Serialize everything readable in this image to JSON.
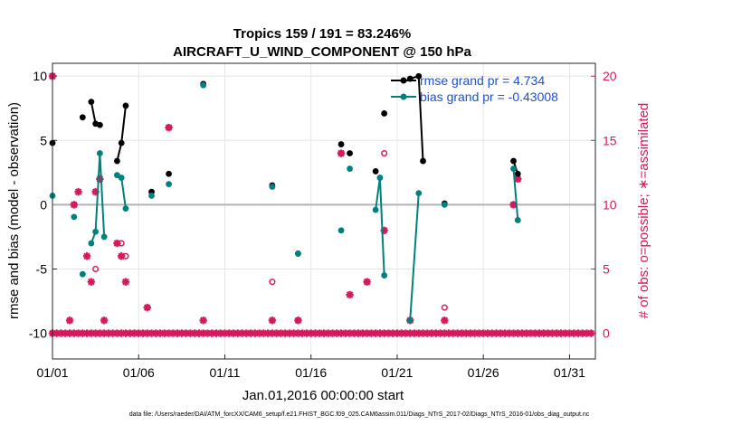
{
  "chart_data": {
    "type": "line",
    "title": "Tropics 159 / 191 = 83.246%",
    "subtitle": "AIRCRAFT_U_WIND_COMPONENT @ 150 hPa",
    "xlabel": "Jan.01,2016 00:00:00 start",
    "ylabel_left": "rmse and bias (model - observation)",
    "ylabel_right": "# of obs: o=possible; ∗=assimilated",
    "footer": "data file: /Users/raeder/DAI/ATM_forcXX/CAM6_setup/f.e21.FHIST_BGC.f09_025.CAM6assim.011/Diags_NTrS_2017-02/Diags_NTrS_2016-01/obs_diag_output.nc",
    "xlim": [
      0,
      31.5
    ],
    "ylim_left": [
      -12,
      11
    ],
    "ylim_right": [
      -2,
      21
    ],
    "x_ticks": [
      0,
      5,
      10,
      15,
      20,
      25,
      30
    ],
    "x_tick_labels": [
      "01/01",
      "01/06",
      "01/11",
      "01/16",
      "01/21",
      "01/26",
      "01/31"
    ],
    "y_left_ticks": [
      -10,
      -5,
      0,
      5,
      10
    ],
    "y_left_tick_labels": [
      "-10",
      "-5",
      "0",
      "5",
      "10"
    ],
    "y_right_ticks": [
      0,
      5,
      10,
      15,
      20
    ],
    "y_right_tick_labels": [
      "0",
      "5",
      "10",
      "15",
      "20"
    ],
    "grid": true,
    "legend_position": "top-right",
    "colors": {
      "rmse": "#000000",
      "bias": "#00807f",
      "obs": "#d6195c",
      "zero_line": "#b3b3b3",
      "legend_text": "#1a50e0"
    },
    "series": [
      {
        "name": "rmse grand pr = 4.734",
        "axis": "left",
        "points": [
          [
            0,
            4.8
          ],
          [
            1.75,
            6.8
          ],
          [
            2.25,
            8.0
          ],
          [
            2.5,
            6.3
          ],
          [
            2.75,
            6.2
          ],
          [
            3.75,
            3.4
          ],
          [
            4.0,
            4.8
          ],
          [
            4.25,
            7.7
          ],
          [
            5.75,
            1.0
          ],
          [
            6.75,
            2.4
          ],
          [
            8.75,
            9.4
          ],
          [
            12.75,
            1.5
          ],
          [
            14.25,
            -3.8
          ],
          [
            16.75,
            4.7
          ],
          [
            17.25,
            4.0
          ],
          [
            18.75,
            2.6
          ],
          [
            19.25,
            7.1
          ],
          [
            20.75,
            9.8
          ],
          [
            21.25,
            10.0
          ],
          [
            21.5,
            3.4
          ],
          [
            22.75,
            0.1
          ],
          [
            26.75,
            3.4
          ],
          [
            27.0,
            2.4
          ]
        ],
        "lines": [
          [
            [
              2.25,
              8.0
            ],
            [
              2.5,
              6.3
            ],
            [
              2.75,
              6.2
            ]
          ],
          [
            [
              3.75,
              3.4
            ],
            [
              4.0,
              4.8
            ],
            [
              4.25,
              7.7
            ]
          ],
          [
            [
              20.75,
              9.8
            ],
            [
              21.25,
              10.0
            ],
            [
              21.5,
              3.4
            ]
          ],
          [
            [
              26.75,
              3.4
            ],
            [
              27.0,
              2.4
            ]
          ]
        ]
      },
      {
        "name": "bias grand pr = -0.43008",
        "axis": "left",
        "points": [
          [
            0,
            0.7
          ],
          [
            1.25,
            -0.95
          ],
          [
            1.75,
            -5.4
          ],
          [
            2.25,
            -3.0
          ],
          [
            2.5,
            -2.1
          ],
          [
            2.75,
            4.0
          ],
          [
            3.0,
            -2.5
          ],
          [
            3.75,
            2.3
          ],
          [
            4.0,
            2.1
          ],
          [
            4.25,
            -0.3
          ],
          [
            5.75,
            0.7
          ],
          [
            6.75,
            1.6
          ],
          [
            8.75,
            9.3
          ],
          [
            12.75,
            1.4
          ],
          [
            14.25,
            -3.8
          ],
          [
            16.75,
            -2.0
          ],
          [
            17.25,
            2.8
          ],
          [
            18.75,
            -0.4
          ],
          [
            19.0,
            2.1
          ],
          [
            19.25,
            -5.5
          ],
          [
            20.75,
            -9.0
          ],
          [
            21.25,
            0.9
          ],
          [
            22.75,
            0.0
          ],
          [
            26.75,
            2.8
          ],
          [
            27.0,
            -1.2
          ]
        ],
        "lines": [
          [
            [
              2.25,
              -3.0
            ],
            [
              2.5,
              -2.1
            ],
            [
              2.75,
              4.0
            ],
            [
              3.0,
              -2.5
            ]
          ],
          [
            [
              3.75,
              2.3
            ],
            [
              4.0,
              2.1
            ],
            [
              4.25,
              -0.3
            ]
          ],
          [
            [
              18.75,
              -0.4
            ],
            [
              19.0,
              2.1
            ],
            [
              19.25,
              -5.5
            ]
          ],
          [
            [
              20.75,
              -9.0
            ],
            [
              21.25,
              0.9
            ]
          ],
          [
            [
              26.75,
              2.8
            ],
            [
              27.0,
              -1.2
            ]
          ]
        ]
      }
    ],
    "obs_assimilated": {
      "name": "assimilated",
      "axis": "right",
      "points": [
        [
          0,
          20
        ],
        [
          1,
          1
        ],
        [
          1.25,
          10
        ],
        [
          1.5,
          11
        ],
        [
          2,
          6
        ],
        [
          2.25,
          4
        ],
        [
          2.5,
          11
        ],
        [
          2.75,
          12
        ],
        [
          3,
          1
        ],
        [
          3.75,
          7
        ],
        [
          4,
          6
        ],
        [
          4.25,
          4
        ],
        [
          5.5,
          2
        ],
        [
          6.75,
          16
        ],
        [
          8.75,
          1
        ],
        [
          12.75,
          1
        ],
        [
          14.25,
          1
        ],
        [
          16.75,
          14
        ],
        [
          17.25,
          3
        ],
        [
          18.25,
          4
        ],
        [
          19.25,
          8
        ],
        [
          20.75,
          1
        ],
        [
          22.75,
          1
        ],
        [
          26.75,
          10
        ],
        [
          27.0,
          12
        ]
      ]
    },
    "obs_possible": {
      "name": "possible",
      "axis": "right",
      "points": [
        [
          0,
          20
        ],
        [
          1.25,
          10
        ],
        [
          2.5,
          5
        ],
        [
          2.75,
          12
        ],
        [
          4.0,
          7
        ],
        [
          4.25,
          6
        ],
        [
          5.5,
          2
        ],
        [
          6.75,
          16
        ],
        [
          12.75,
          4
        ],
        [
          14.25,
          1
        ],
        [
          16.75,
          14
        ],
        [
          18.25,
          4
        ],
        [
          19.25,
          14
        ],
        [
          20.75,
          1
        ],
        [
          22.75,
          2
        ],
        [
          26.75,
          10
        ],
        [
          27.0,
          12
        ]
      ]
    },
    "obs_zero_range": {
      "from": 0,
      "to": 31.25,
      "step": 0.25,
      "value": 0
    }
  }
}
